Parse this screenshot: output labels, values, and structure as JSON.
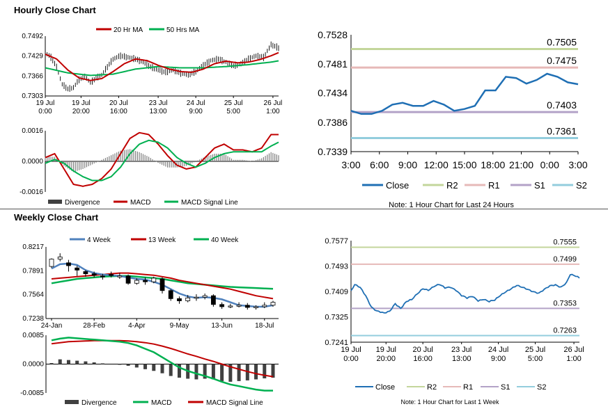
{
  "sections": {
    "hourly_title": "Hourly Close Chart",
    "weekly_title": "Weekly Close Chart"
  },
  "chart_data": [
    {
      "id": "hourly-price",
      "type": "line",
      "legend": [
        "20 Hr MA",
        "50 Hrs MA"
      ],
      "colors": {
        "ma20": "#c00000",
        "ma50": "#00b050",
        "price": "#000000"
      },
      "x_ticks": [
        {
          "i": 0,
          "l1": "19 Jul",
          "l2": "0:00"
        },
        {
          "i": 19,
          "l1": "19 Jul",
          "l2": "20:00"
        },
        {
          "i": 39,
          "l1": "20 Jul",
          "l2": "16:00"
        },
        {
          "i": 60,
          "l1": "23 Jul",
          "l2": "13:00"
        },
        {
          "i": 80,
          "l1": "24 Jul",
          "l2": "9:00"
        },
        {
          "i": 100,
          "l1": "25 Jul",
          "l2": "5:00"
        },
        {
          "i": 121,
          "l1": "26 Jul",
          "l2": "1:00"
        }
      ],
      "y_ticks": [
        0.7492,
        0.7429,
        0.7366,
        0.7303
      ],
      "ylim": [
        0.7303,
        0.7492
      ],
      "n": 125,
      "close_anchors": [
        [
          0,
          0.744
        ],
        [
          3,
          0.7425
        ],
        [
          6,
          0.7395
        ],
        [
          9,
          0.734
        ],
        [
          12,
          0.7325
        ],
        [
          15,
          0.733
        ],
        [
          18,
          0.7355
        ],
        [
          21,
          0.7365
        ],
        [
          24,
          0.7345
        ],
        [
          27,
          0.736
        ],
        [
          30,
          0.737
        ],
        [
          33,
          0.7395
        ],
        [
          36,
          0.742
        ],
        [
          40,
          0.743
        ],
        [
          44,
          0.7425
        ],
        [
          48,
          0.742
        ],
        [
          52,
          0.741
        ],
        [
          56,
          0.7395
        ],
        [
          60,
          0.7385
        ],
        [
          64,
          0.7378
        ],
        [
          68,
          0.7385
        ],
        [
          72,
          0.7375
        ],
        [
          76,
          0.737
        ],
        [
          80,
          0.738
        ],
        [
          84,
          0.74
        ],
        [
          88,
          0.7415
        ],
        [
          92,
          0.742
        ],
        [
          96,
          0.741
        ],
        [
          100,
          0.7398
        ],
        [
          104,
          0.7405
        ],
        [
          108,
          0.742
        ],
        [
          112,
          0.743
        ],
        [
          116,
          0.7425
        ],
        [
          118,
          0.7445
        ],
        [
          120,
          0.7465
        ],
        [
          122,
          0.746
        ],
        [
          124,
          0.7455
        ]
      ],
      "ma20_anchors": [
        [
          0,
          0.7435
        ],
        [
          6,
          0.742
        ],
        [
          12,
          0.7385
        ],
        [
          18,
          0.736
        ],
        [
          24,
          0.7352
        ],
        [
          30,
          0.7358
        ],
        [
          36,
          0.738
        ],
        [
          42,
          0.7405
        ],
        [
          48,
          0.742
        ],
        [
          54,
          0.7415
        ],
        [
          60,
          0.74
        ],
        [
          66,
          0.7388
        ],
        [
          72,
          0.738
        ],
        [
          78,
          0.7378
        ],
        [
          84,
          0.7388
        ],
        [
          90,
          0.7405
        ],
        [
          96,
          0.7413
        ],
        [
          102,
          0.7408
        ],
        [
          108,
          0.741
        ],
        [
          114,
          0.7418
        ],
        [
          120,
          0.743
        ],
        [
          124,
          0.744
        ]
      ],
      "ma50_anchors": [
        [
          0,
          0.7392
        ],
        [
          12,
          0.7376
        ],
        [
          24,
          0.7368
        ],
        [
          36,
          0.7372
        ],
        [
          48,
          0.7388
        ],
        [
          60,
          0.7396
        ],
        [
          72,
          0.7392
        ],
        [
          84,
          0.7392
        ],
        [
          96,
          0.7396
        ],
        [
          108,
          0.7402
        ],
        [
          120,
          0.741
        ],
        [
          124,
          0.7414
        ]
      ]
    },
    {
      "id": "hourly-macd",
      "type": "bar",
      "legend": [
        "Divergence",
        "MACD",
        "MACD Signal Line"
      ],
      "colors": {
        "divergence": "#7f7f7f",
        "macd": "#c00000",
        "signal": "#00b050"
      },
      "y_ticks": [
        0.0016,
        0.0,
        -0.0016
      ],
      "ylim": [
        -0.0016,
        0.0016
      ],
      "n": 125,
      "macd_anchors": [
        [
          0,
          0.0002
        ],
        [
          5,
          0.0004
        ],
        [
          10,
          -0.0004
        ],
        [
          15,
          -0.0012
        ],
        [
          20,
          -0.0013
        ],
        [
          25,
          -0.0012
        ],
        [
          30,
          -0.0009
        ],
        [
          35,
          -0.0004
        ],
        [
          40,
          0.0004
        ],
        [
          45,
          0.0012
        ],
        [
          50,
          0.0015
        ],
        [
          55,
          0.0014
        ],
        [
          60,
          0.0009
        ],
        [
          65,
          0.0003
        ],
        [
          70,
          -0.0002
        ],
        [
          75,
          -0.0004
        ],
        [
          80,
          -0.0003
        ],
        [
          85,
          0.0002
        ],
        [
          90,
          0.0007
        ],
        [
          95,
          0.0009
        ],
        [
          100,
          0.0006
        ],
        [
          105,
          0.0006
        ],
        [
          110,
          0.0005
        ],
        [
          115,
          0.0007
        ],
        [
          120,
          0.0014
        ],
        [
          124,
          0.0014
        ]
      ],
      "signal_anchors": [
        [
          0,
          -0.0001
        ],
        [
          5,
          0.0001
        ],
        [
          10,
          -0.0001
        ],
        [
          15,
          -0.0005
        ],
        [
          20,
          -0.0008
        ],
        [
          25,
          -0.001
        ],
        [
          30,
          -0.001
        ],
        [
          35,
          -0.0008
        ],
        [
          40,
          -0.0003
        ],
        [
          45,
          0.0004
        ],
        [
          50,
          0.0009
        ],
        [
          55,
          0.0011
        ],
        [
          60,
          0.001
        ],
        [
          65,
          0.0007
        ],
        [
          70,
          0.0002
        ],
        [
          75,
          -0.0001
        ],
        [
          80,
          -0.0003
        ],
        [
          85,
          -0.0001
        ],
        [
          90,
          0.0002
        ],
        [
          95,
          0.0004
        ],
        [
          100,
          0.0005
        ],
        [
          105,
          0.0005
        ],
        [
          110,
          0.0005
        ],
        [
          115,
          0.0005
        ],
        [
          120,
          0.0008
        ],
        [
          124,
          0.001
        ]
      ]
    },
    {
      "id": "hourly-24h",
      "type": "line",
      "legend": [
        "Close",
        "R2",
        "R1",
        "S1",
        "S2"
      ],
      "colors": {
        "close": "#1f6fb4",
        "r2": "#c3d69b",
        "r1": "#e6b9b8",
        "s1": "#b3a2c7",
        "s2": "#93cddd"
      },
      "x_labels": [
        "3:00",
        "6:00",
        "9:00",
        "12:00",
        "15:00",
        "18:00",
        "21:00",
        "0:00",
        "3:00"
      ],
      "y_ticks": [
        0.7528,
        0.7481,
        0.7434,
        0.7386,
        0.7339
      ],
      "ylim": [
        0.7339,
        0.7528
      ],
      "levels": {
        "r2": 0.7505,
        "r1": 0.7475,
        "s1": 0.7403,
        "s2": 0.7361
      },
      "level_labels": {
        "r2": "0.7505",
        "r1": "0.7475",
        "s1": "0.7403",
        "s2": "0.7361"
      },
      "close": [
        0.7405,
        0.74,
        0.74,
        0.7405,
        0.7415,
        0.7418,
        0.7413,
        0.7413,
        0.7421,
        0.7415,
        0.7405,
        0.7408,
        0.7413,
        0.7438,
        0.7438,
        0.746,
        0.7458,
        0.7449,
        0.7455,
        0.7465,
        0.746,
        0.7451,
        0.7448
      ],
      "note": "Note: 1 Hour Chart for Last 24 Hours"
    },
    {
      "id": "weekly-price",
      "type": "line",
      "legend": [
        "4 Week",
        "13 Week",
        "40 Week"
      ],
      "colors": {
        "w4": "#4f81bd",
        "w13": "#c00000",
        "w40": "#00b050"
      },
      "x_ticks": [
        {
          "i": 0,
          "l": "24-Jan"
        },
        {
          "i": 5,
          "l": "28-Feb"
        },
        {
          "i": 10,
          "l": "4-Apr"
        },
        {
          "i": 15,
          "l": "9-May"
        },
        {
          "i": 20,
          "l": "13-Jun"
        },
        {
          "i": 25,
          "l": "18-Jul"
        }
      ],
      "y_ticks": [
        0.8217,
        0.7891,
        0.7564,
        0.7238
      ],
      "ylim": [
        0.7238,
        0.8217
      ],
      "candles": [
        [
          0.795,
          0.805,
          0.793,
          0.806
        ],
        [
          0.805,
          0.808,
          0.802,
          0.813
        ],
        [
          0.8,
          0.796,
          0.788,
          0.804
        ],
        [
          0.793,
          0.79,
          0.782,
          0.796
        ],
        [
          0.788,
          0.785,
          0.781,
          0.79
        ],
        [
          0.785,
          0.783,
          0.78,
          0.788
        ],
        [
          0.782,
          0.781,
          0.777,
          0.785
        ],
        [
          0.784,
          0.783,
          0.78,
          0.788
        ],
        [
          0.781,
          0.782,
          0.778,
          0.786
        ],
        [
          0.782,
          0.772,
          0.77,
          0.784
        ],
        [
          0.772,
          0.776,
          0.77,
          0.779
        ],
        [
          0.776,
          0.774,
          0.77,
          0.78
        ],
        [
          0.774,
          0.779,
          0.772,
          0.781
        ],
        [
          0.778,
          0.762,
          0.758,
          0.78
        ],
        [
          0.762,
          0.751,
          0.748,
          0.764
        ],
        [
          0.751,
          0.748,
          0.744,
          0.754
        ],
        [
          0.748,
          0.752,
          0.746,
          0.756
        ],
        [
          0.752,
          0.753,
          0.748,
          0.757
        ],
        [
          0.753,
          0.755,
          0.75,
          0.758
        ],
        [
          0.755,
          0.743,
          0.74,
          0.757
        ],
        [
          0.743,
          0.74,
          0.737,
          0.746
        ],
        [
          0.74,
          0.741,
          0.738,
          0.744
        ],
        [
          0.741,
          0.742,
          0.739,
          0.746
        ],
        [
          0.742,
          0.739,
          0.736,
          0.745
        ],
        [
          0.739,
          0.74,
          0.736,
          0.742
        ],
        [
          0.74,
          0.742,
          0.738,
          0.746
        ],
        [
          0.742,
          0.746,
          0.74,
          0.748
        ]
      ],
      "w4": [
        0.792,
        0.798,
        0.799,
        0.797,
        0.79,
        0.786,
        0.784,
        0.783,
        0.782,
        0.78,
        0.778,
        0.777,
        0.774,
        0.77,
        0.764,
        0.758,
        0.754,
        0.752,
        0.753,
        0.752,
        0.75,
        0.746,
        0.742,
        0.741,
        0.74,
        0.74,
        0.742
      ],
      "w13": [
        0.778,
        0.779,
        0.78,
        0.781,
        0.782,
        0.783,
        0.784,
        0.785,
        0.786,
        0.786,
        0.785,
        0.784,
        0.783,
        0.781,
        0.779,
        0.776,
        0.774,
        0.772,
        0.77,
        0.768,
        0.766,
        0.764,
        0.761,
        0.758,
        0.755,
        0.753,
        0.751
      ],
      "w40": [
        0.772,
        0.774,
        0.776,
        0.778,
        0.779,
        0.78,
        0.781,
        0.7815,
        0.782,
        0.782,
        0.781,
        0.78,
        0.779,
        0.778,
        0.776,
        0.774,
        0.772,
        0.771,
        0.77,
        0.769,
        0.768,
        0.767,
        0.7665,
        0.766,
        0.7655,
        0.765,
        0.7645
      ]
    },
    {
      "id": "weekly-macd",
      "type": "bar",
      "legend": [
        "Divergence",
        "MACD",
        "MACD Signal Line"
      ],
      "colors": {
        "divergence": "#404040",
        "macd": "#00b050",
        "signal": "#c00000"
      },
      "y_ticks": [
        0.0085,
        0.0,
        -0.0085
      ],
      "ylim": [
        -0.0085,
        0.0085
      ],
      "divergence": [
        0.0003,
        0.0014,
        0.0012,
        0.001,
        0.0008,
        0.0005,
        0.0002,
        0.0,
        -0.0002,
        -0.0005,
        -0.001,
        -0.0015,
        -0.002,
        -0.0027,
        -0.0035,
        -0.004,
        -0.0043,
        -0.0045,
        -0.0043,
        -0.0045,
        -0.005,
        -0.0052,
        -0.005,
        -0.0048,
        -0.0045,
        -0.0042,
        -0.004
      ],
      "macd": [
        0.007,
        0.0075,
        0.0078,
        0.0076,
        0.0074,
        0.0072,
        0.007,
        0.0068,
        0.0066,
        0.0062,
        0.0055,
        0.0045,
        0.0035,
        0.002,
        0.0005,
        -0.001,
        -0.002,
        -0.0028,
        -0.0035,
        -0.0043,
        -0.0052,
        -0.006,
        -0.0065,
        -0.007,
        -0.0075,
        -0.0078,
        -0.0078
      ],
      "signal": [
        0.006,
        0.0063,
        0.0066,
        0.0067,
        0.0068,
        0.0069,
        0.0069,
        0.0069,
        0.0069,
        0.0068,
        0.0066,
        0.0063,
        0.0059,
        0.0053,
        0.0046,
        0.0038,
        0.003,
        0.0023,
        0.0015,
        0.0008,
        0.0,
        -0.0008,
        -0.0015,
        -0.0022,
        -0.0028,
        -0.0033,
        -0.0037
      ]
    },
    {
      "id": "weekly-1w",
      "type": "line",
      "legend": [
        "Close",
        "R2",
        "R1",
        "S1",
        "S2"
      ],
      "colors": {
        "close": "#1f6fb4",
        "r2": "#c3d69b",
        "r1": "#e6b9b8",
        "s1": "#b3a2c7",
        "s2": "#93cddd"
      },
      "x_ticks": [
        {
          "i": 0,
          "l1": "19 Jul",
          "l2": "0:00"
        },
        {
          "i": 19,
          "l1": "19 Jul",
          "l2": "20:00"
        },
        {
          "i": 39,
          "l1": "20 Jul",
          "l2": "16:00"
        },
        {
          "i": 60,
          "l1": "23 Jul",
          "l2": "13:00"
        },
        {
          "i": 80,
          "l1": "24 Jul",
          "l2": "9:00"
        },
        {
          "i": 100,
          "l1": "25 Jul",
          "l2": "5:00"
        },
        {
          "i": 121,
          "l1": "26 Jul",
          "l2": "1:00"
        }
      ],
      "y_ticks": [
        0.7577,
        0.7493,
        0.7409,
        0.7325,
        0.7241
      ],
      "ylim": [
        0.7241,
        0.7577
      ],
      "n": 125,
      "levels": {
        "r2": 0.7555,
        "r1": 0.7499,
        "s1": 0.7353,
        "s2": 0.7263
      },
      "level_labels": {
        "r2": "0.7555",
        "r1": "0.7499",
        "s1": "0.7353",
        "s2": "0.7263"
      },
      "close_anchors": [
        [
          0,
          0.741
        ],
        [
          2,
          0.743
        ],
        [
          5,
          0.742
        ],
        [
          8,
          0.7395
        ],
        [
          11,
          0.736
        ],
        [
          14,
          0.7345
        ],
        [
          18,
          0.7335
        ],
        [
          21,
          0.7342
        ],
        [
          24,
          0.737
        ],
        [
          27,
          0.7355
        ],
        [
          30,
          0.7375
        ],
        [
          33,
          0.738
        ],
        [
          36,
          0.74
        ],
        [
          39,
          0.742
        ],
        [
          42,
          0.7415
        ],
        [
          45,
          0.7425
        ],
        [
          48,
          0.743
        ],
        [
          51,
          0.742
        ],
        [
          54,
          0.7425
        ],
        [
          57,
          0.7415
        ],
        [
          60,
          0.7395
        ],
        [
          63,
          0.7385
        ],
        [
          66,
          0.7392
        ],
        [
          69,
          0.738
        ],
        [
          72,
          0.7385
        ],
        [
          75,
          0.7375
        ],
        [
          78,
          0.7378
        ],
        [
          81,
          0.7395
        ],
        [
          84,
          0.741
        ],
        [
          87,
          0.742
        ],
        [
          90,
          0.7428
        ],
        [
          93,
          0.742
        ],
        [
          96,
          0.7415
        ],
        [
          99,
          0.741
        ],
        [
          102,
          0.7405
        ],
        [
          105,
          0.7415
        ],
        [
          108,
          0.7425
        ],
        [
          111,
          0.743
        ],
        [
          114,
          0.7425
        ],
        [
          117,
          0.744
        ],
        [
          119,
          0.7465
        ],
        [
          121,
          0.746
        ],
        [
          124,
          0.7452
        ]
      ],
      "note": "Note: 1 Hour Chart for Last 1 Week"
    }
  ]
}
